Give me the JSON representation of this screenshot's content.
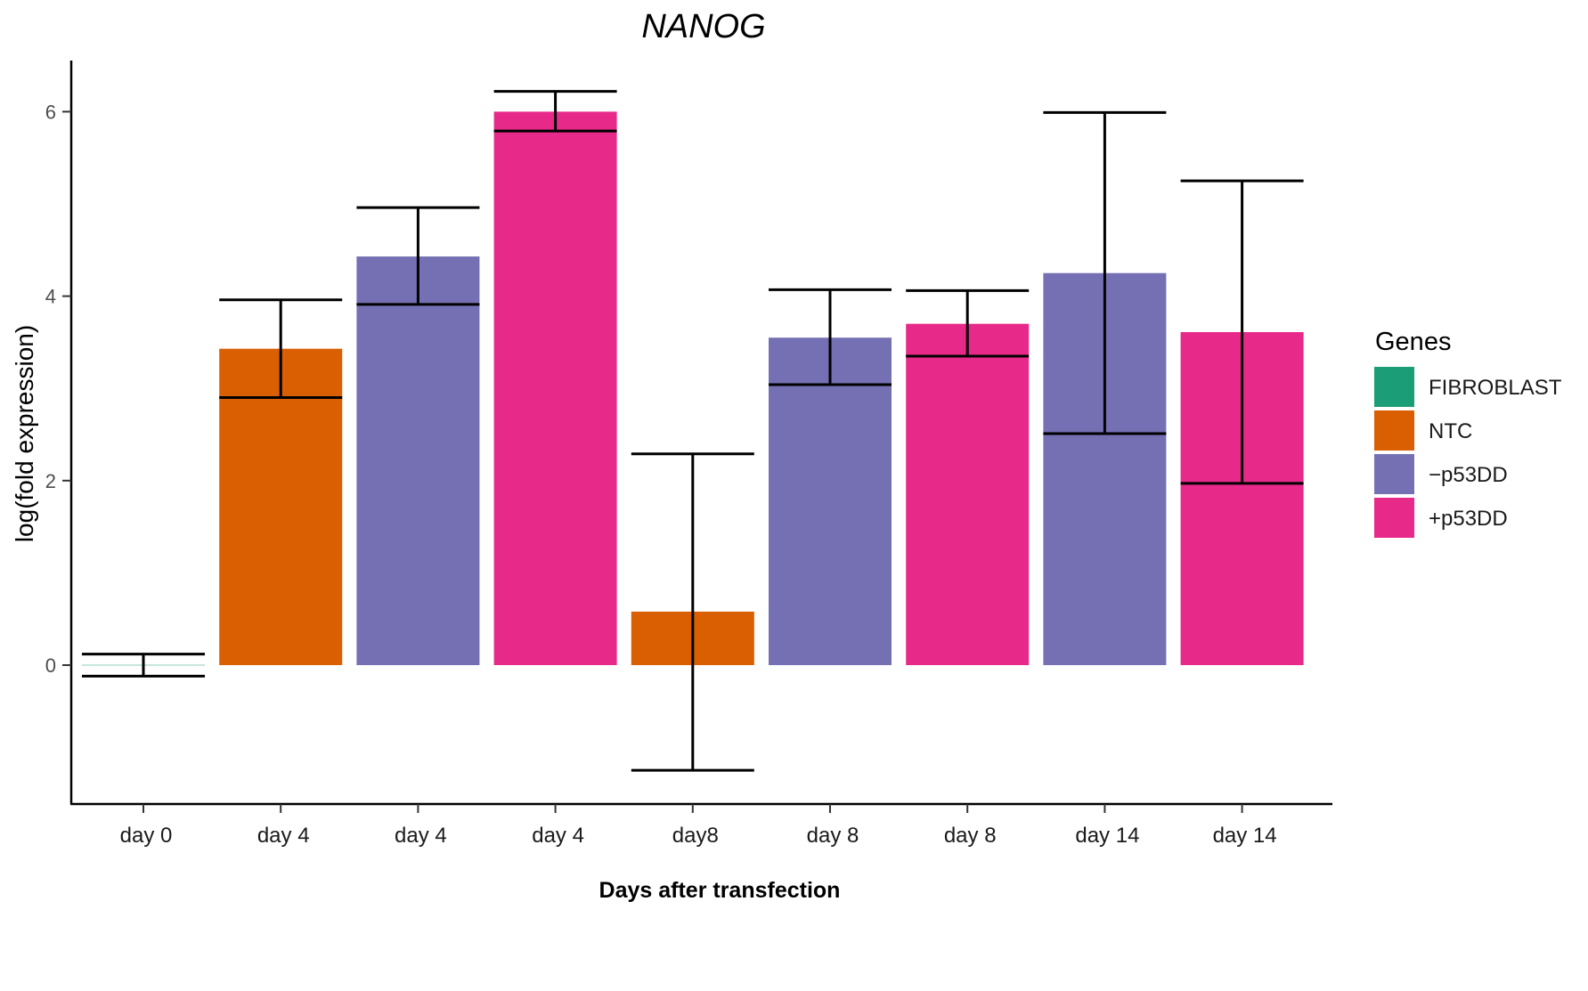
{
  "chart_data": {
    "type": "bar",
    "title": "NANOG",
    "xlabel": "Days after transfection",
    "ylabel": "log(fold expression)",
    "ylim": [
      -1.5,
      6.6
    ],
    "yticks": [
      0,
      2,
      4,
      6
    ],
    "grid": false,
    "legend": {
      "title": "Genes",
      "position": "right",
      "entries": [
        {
          "label": "FIBROBLAST",
          "color": "#1b9e77"
        },
        {
          "label": "NTC",
          "color": "#d95f02"
        },
        {
          "label": "−p53DD",
          "color": "#7570b3"
        },
        {
          "label": "+p53DD",
          "color": "#e7298a"
        }
      ]
    },
    "bars": [
      {
        "category": "day 0",
        "group": "FIBROBLAST",
        "value": 0.0,
        "err_low": -0.12,
        "err_high": 0.12
      },
      {
        "category": "day 4",
        "group": "NTC",
        "value": 3.43,
        "err_low": 2.9,
        "err_high": 3.96
      },
      {
        "category": "day 4",
        "group": "−p53DD",
        "value": 4.43,
        "err_low": 3.91,
        "err_high": 4.96
      },
      {
        "category": "day 4",
        "group": "+p53DD",
        "value": 6.0,
        "err_low": 5.79,
        "err_high": 6.22
      },
      {
        "category": "day8",
        "group": "NTC",
        "value": 0.58,
        "err_low": -1.14,
        "err_high": 2.29
      },
      {
        "category": "day 8",
        "group": "−p53DD",
        "value": 3.55,
        "err_low": 3.04,
        "err_high": 4.07
      },
      {
        "category": "day 8",
        "group": "+p53DD",
        "value": 3.7,
        "err_low": 3.35,
        "err_high": 4.06
      },
      {
        "category": "day 14",
        "group": "−p53DD",
        "value": 4.25,
        "err_low": 2.51,
        "err_high": 5.99
      },
      {
        "category": "day 14",
        "group": "+p53DD",
        "value": 3.61,
        "err_low": 1.97,
        "err_high": 5.25
      }
    ]
  }
}
